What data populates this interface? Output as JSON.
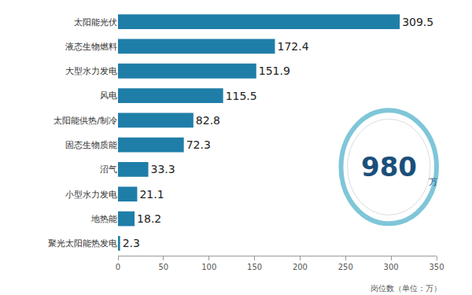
{
  "chart_data": {
    "type": "bar",
    "orientation": "horizontal",
    "categories": [
      "太阳能光伏",
      "液态生物燃料",
      "大型水力发电",
      "风电",
      "太阳能供热/制冷",
      "固态生物质能",
      "沼气",
      "小型水力发电",
      "地热能",
      "聚光太阳能热发电"
    ],
    "values": [
      309.5,
      172.4,
      151.9,
      115.5,
      82.8,
      72.3,
      33.3,
      21.1,
      18.2,
      2.3
    ],
    "color": "#1f7ea8",
    "xlim": [
      0,
      350
    ],
    "xticks": [
      0,
      50,
      100,
      150,
      200,
      250,
      300,
      350
    ],
    "x_label": "岗位数（单位：万）",
    "data_labels": true,
    "grid": false,
    "annotations": [
      {
        "text": "980"
      },
      {
        "text": "万"
      }
    ]
  }
}
